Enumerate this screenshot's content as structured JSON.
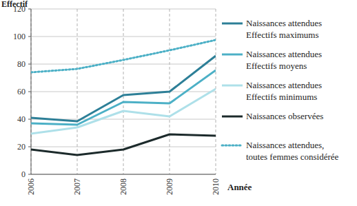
{
  "chart_data": {
    "type": "line",
    "y_label": "Effectif",
    "x_label": "Année",
    "categories": [
      "2006",
      "2007",
      "2008",
      "2009",
      "2010"
    ],
    "ylim": [
      0,
      120
    ],
    "yticks": [
      0,
      20,
      40,
      60,
      80,
      100,
      120
    ],
    "grid": true,
    "legend": "right",
    "series": [
      {
        "name": "Naissances attendues\nEffectifs maximums",
        "color": "#2d7f97",
        "line_style": "solid",
        "values": [
          41,
          38.5,
          57.5,
          60,
          86
        ]
      },
      {
        "name": "Naissances attendues\nEffectifs moyens",
        "color": "#4cb0c6",
        "line_style": "solid",
        "values": [
          37,
          36,
          52.5,
          51.5,
          75.5
        ]
      },
      {
        "name": "Naissances attendues\nEffectifs minimums",
        "color": "#aee0e9",
        "line_style": "solid",
        "values": [
          29.5,
          34,
          46,
          42,
          62
        ]
      },
      {
        "name": "Naissances observées",
        "color": "#1c2a2b",
        "line_style": "solid",
        "values": [
          18,
          14,
          18,
          29,
          28
        ]
      },
      {
        "name": "Naissances attendues,\ntoutes femmes considérée",
        "color": "#4cb0c6",
        "line_style": "dotted",
        "values": [
          74,
          76.5,
          83,
          90,
          97.5
        ]
      }
    ]
  }
}
